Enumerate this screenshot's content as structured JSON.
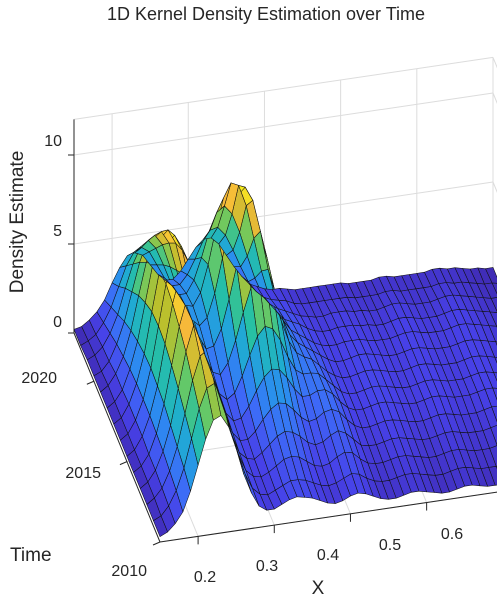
{
  "chart_data": {
    "type": "surface",
    "title": "1D Kernel Density Estimation over Time",
    "xlabel": "X",
    "ylabel": "Time",
    "zlabel": "Density Estimate",
    "x_range": [
      0.15,
      0.7
    ],
    "y_range": [
      2010,
      2023
    ],
    "z_range": [
      0,
      12
    ],
    "x_ticks": [
      0.2,
      0.3,
      0.4,
      0.5,
      0.6
    ],
    "x_tick_labels": [
      "0.2",
      "0.3",
      "0.4",
      "0.5",
      "0.6"
    ],
    "y_ticks": [
      2010,
      2015,
      2020
    ],
    "y_tick_labels": [
      "2010",
      "2015",
      "2020"
    ],
    "z_ticks": [
      0,
      5,
      10
    ],
    "z_tick_labels": [
      "0",
      "5",
      "10"
    ],
    "colormap": "parula",
    "colormap_stops": [
      "#3e26a8",
      "#4741e8",
      "#3e69f7",
      "#2b8def",
      "#1fadd0",
      "#27c0a3",
      "#6bc962",
      "#bcc02c",
      "#f6b83a",
      "#f5dd27",
      "#f9fb0e"
    ],
    "grid": true,
    "view": "3-D surface viewed from low X / high Time corner",
    "x_samples": [
      0.15,
      0.16,
      0.17,
      0.18,
      0.19,
      0.2,
      0.21,
      0.22,
      0.23,
      0.24,
      0.25,
      0.26,
      0.27,
      0.28,
      0.29,
      0.3,
      0.31,
      0.32,
      0.33,
      0.34,
      0.35,
      0.36,
      0.37,
      0.38,
      0.39,
      0.4,
      0.41,
      0.42,
      0.43,
      0.44,
      0.45,
      0.46,
      0.47,
      0.48,
      0.49,
      0.5,
      0.51,
      0.52,
      0.53,
      0.54,
      0.55,
      0.56,
      0.57,
      0.58,
      0.59,
      0.6,
      0.61,
      0.62,
      0.63,
      0.64,
      0.65,
      0.66,
      0.67,
      0.68,
      0.69,
      0.7
    ],
    "series": [
      {
        "name": "2010",
        "values": [
          0.3,
          0.5,
          0.9,
          1.5,
          2.6,
          4.0,
          5.4,
          6.4,
          6.6,
          5.9,
          4.6,
          3.1,
          2.0,
          1.2,
          0.9,
          0.9,
          1.1,
          1.3,
          1.4,
          1.3,
          1.2,
          1.0,
          0.8,
          0.7,
          0.8,
          1.0,
          1.1,
          1.0,
          0.8,
          0.6,
          0.5,
          0.5,
          0.6,
          0.7,
          0.7,
          0.6,
          0.5,
          0.4,
          0.4,
          0.5,
          0.6,
          0.6,
          0.5,
          0.4,
          0.4,
          0.4,
          0.5,
          0.6,
          0.6,
          0.5,
          0.4,
          0.4,
          0.4,
          0.4,
          0.3,
          0.3
        ]
      },
      {
        "name": "2011",
        "values": [
          0.3,
          0.5,
          1.0,
          1.8,
          3.0,
          4.6,
          6.2,
          7.3,
          7.5,
          6.7,
          5.2,
          3.5,
          2.2,
          1.3,
          0.9,
          0.8,
          1.0,
          1.2,
          1.4,
          1.4,
          1.3,
          1.1,
          0.9,
          0.8,
          0.9,
          1.1,
          1.3,
          1.2,
          0.9,
          0.7,
          0.6,
          0.6,
          0.7,
          0.8,
          0.8,
          0.7,
          0.6,
          0.5,
          0.5,
          0.6,
          0.7,
          0.7,
          0.6,
          0.5,
          0.5,
          0.5,
          0.6,
          0.7,
          0.7,
          0.6,
          0.5,
          0.5,
          0.5,
          0.5,
          0.4,
          0.4
        ]
      },
      {
        "name": "2012",
        "values": [
          0.3,
          0.6,
          1.1,
          2.0,
          3.3,
          5.1,
          6.9,
          8.2,
          8.5,
          7.6,
          5.9,
          3.9,
          2.4,
          1.4,
          1.0,
          0.9,
          1.1,
          1.4,
          1.7,
          1.8,
          1.7,
          1.4,
          1.1,
          1.0,
          1.1,
          1.4,
          1.6,
          1.5,
          1.1,
          0.8,
          0.7,
          0.7,
          0.8,
          0.9,
          0.9,
          0.8,
          0.7,
          0.6,
          0.6,
          0.7,
          0.8,
          0.8,
          0.7,
          0.6,
          0.6,
          0.6,
          0.7,
          0.8,
          0.8,
          0.7,
          0.6,
          0.6,
          0.6,
          0.5,
          0.4,
          0.4
        ]
      },
      {
        "name": "2013",
        "values": [
          0.3,
          0.6,
          1.2,
          2.2,
          3.6,
          5.6,
          7.6,
          9.0,
          9.3,
          8.3,
          6.4,
          4.3,
          2.6,
          1.5,
          1.1,
          1.0,
          1.3,
          1.7,
          2.1,
          2.3,
          2.2,
          1.9,
          1.5,
          1.3,
          1.4,
          1.7,
          1.9,
          1.7,
          1.3,
          0.9,
          0.8,
          0.8,
          0.9,
          1.0,
          1.0,
          0.9,
          0.8,
          0.7,
          0.7,
          0.8,
          0.9,
          0.9,
          0.8,
          0.7,
          0.7,
          0.7,
          0.8,
          0.9,
          0.9,
          0.8,
          0.7,
          0.7,
          0.6,
          0.6,
          0.5,
          0.5
        ]
      },
      {
        "name": "2014",
        "values": [
          0.3,
          0.6,
          1.2,
          2.3,
          3.9,
          6.0,
          8.1,
          9.6,
          10.0,
          9.0,
          7.0,
          4.7,
          2.9,
          1.7,
          1.2,
          1.2,
          1.6,
          2.2,
          2.7,
          3.0,
          2.9,
          2.5,
          2.0,
          1.7,
          1.8,
          2.1,
          2.2,
          2.0,
          1.5,
          1.1,
          0.9,
          0.9,
          1.0,
          1.1,
          1.1,
          1.0,
          0.9,
          0.8,
          0.8,
          0.9,
          1.0,
          1.0,
          0.9,
          0.8,
          0.8,
          0.8,
          0.9,
          1.0,
          1.0,
          0.9,
          0.8,
          0.8,
          0.7,
          0.6,
          0.5,
          0.5
        ]
      },
      {
        "name": "2015",
        "values": [
          0.3,
          0.6,
          1.3,
          2.4,
          4.0,
          6.3,
          8.5,
          10.1,
          10.5,
          9.5,
          7.4,
          5.0,
          3.1,
          1.9,
          1.4,
          1.5,
          2.1,
          2.9,
          3.6,
          4.0,
          3.9,
          3.4,
          2.7,
          2.2,
          2.2,
          2.4,
          2.4,
          2.1,
          1.6,
          1.2,
          1.0,
          1.0,
          1.1,
          1.2,
          1.2,
          1.1,
          1.0,
          0.9,
          0.9,
          1.0,
          1.1,
          1.1,
          1.0,
          0.9,
          0.9,
          0.9,
          1.0,
          1.1,
          1.1,
          1.0,
          0.9,
          0.8,
          0.7,
          0.6,
          0.5,
          0.5
        ]
      },
      {
        "name": "2016",
        "values": [
          0.3,
          0.6,
          1.3,
          2.4,
          4.1,
          6.4,
          8.7,
          10.3,
          10.7,
          9.7,
          7.6,
          5.2,
          3.3,
          2.1,
          1.7,
          2.0,
          2.9,
          4.0,
          5.0,
          5.5,
          5.3,
          4.6,
          3.6,
          2.8,
          2.5,
          2.5,
          2.4,
          2.0,
          1.6,
          1.2,
          1.0,
          1.0,
          1.1,
          1.2,
          1.2,
          1.1,
          1.0,
          0.9,
          0.9,
          1.0,
          1.1,
          1.1,
          1.0,
          0.9,
          0.9,
          0.9,
          1.0,
          1.1,
          1.1,
          1.0,
          0.9,
          0.8,
          0.7,
          0.6,
          0.5,
          0.5
        ]
      },
      {
        "name": "2017",
        "values": [
          0.3,
          0.6,
          1.3,
          2.4,
          4.0,
          6.3,
          8.5,
          10.0,
          10.4,
          9.5,
          7.5,
          5.2,
          3.4,
          2.4,
          2.2,
          2.8,
          4.0,
          5.5,
          6.8,
          7.4,
          7.1,
          6.1,
          4.7,
          3.5,
          2.8,
          2.5,
          2.3,
          1.9,
          1.5,
          1.2,
          1.0,
          1.0,
          1.1,
          1.2,
          1.2,
          1.1,
          1.0,
          0.9,
          0.9,
          1.0,
          1.1,
          1.1,
          1.0,
          0.9,
          0.9,
          0.9,
          1.0,
          1.1,
          1.1,
          1.0,
          0.9,
          0.8,
          0.7,
          0.6,
          0.5,
          0.5
        ]
      },
      {
        "name": "2018",
        "values": [
          0.3,
          0.6,
          1.2,
          2.3,
          3.8,
          5.9,
          8.0,
          9.4,
          9.8,
          9.0,
          7.2,
          5.1,
          3.6,
          2.8,
          2.9,
          3.8,
          5.4,
          7.2,
          8.7,
          9.3,
          8.8,
          7.4,
          5.5,
          3.9,
          2.9,
          2.4,
          2.1,
          1.8,
          1.5,
          1.2,
          1.0,
          1.0,
          1.1,
          1.2,
          1.2,
          1.1,
          1.0,
          0.9,
          0.9,
          1.0,
          1.1,
          1.1,
          1.0,
          0.9,
          0.9,
          0.9,
          1.0,
          1.1,
          1.1,
          1.0,
          0.9,
          0.8,
          0.7,
          0.6,
          0.5,
          0.5
        ]
      },
      {
        "name": "2019",
        "values": [
          0.3,
          0.6,
          1.2,
          2.1,
          3.5,
          5.4,
          7.2,
          8.5,
          8.8,
          8.1,
          6.5,
          4.8,
          3.6,
          3.2,
          3.6,
          4.9,
          6.8,
          8.8,
          10.2,
          10.6,
          9.8,
          8.0,
          5.8,
          4.0,
          2.8,
          2.2,
          1.9,
          1.6,
          1.3,
          1.1,
          1.0,
          1.0,
          1.1,
          1.1,
          1.1,
          1.0,
          0.9,
          0.9,
          0.9,
          1.0,
          1.1,
          1.1,
          1.0,
          0.9,
          0.9,
          0.9,
          1.0,
          1.1,
          1.1,
          1.0,
          0.9,
          0.8,
          0.7,
          0.6,
          0.5,
          0.5
        ]
      },
      {
        "name": "2020",
        "values": [
          0.3,
          0.5,
          1.0,
          1.9,
          3.1,
          4.7,
          6.3,
          7.4,
          7.7,
          7.1,
          5.8,
          4.4,
          3.5,
          3.4,
          4.1,
          5.6,
          7.5,
          9.2,
          10.0,
          9.8,
          8.6,
          6.7,
          4.8,
          3.3,
          2.4,
          1.9,
          1.7,
          1.5,
          1.2,
          1.0,
          0.9,
          0.9,
          1.0,
          1.0,
          1.0,
          0.9,
          0.9,
          0.8,
          0.8,
          0.9,
          1.0,
          1.0,
          0.9,
          0.8,
          0.8,
          0.8,
          0.9,
          1.0,
          1.0,
          0.9,
          0.8,
          0.7,
          0.6,
          0.5,
          0.4,
          0.4
        ]
      },
      {
        "name": "2021",
        "values": [
          0.3,
          0.5,
          0.9,
          1.6,
          2.6,
          4.0,
          5.3,
          6.2,
          6.5,
          6.0,
          5.0,
          3.9,
          3.2,
          3.2,
          3.9,
          5.1,
          6.5,
          7.5,
          7.8,
          7.3,
          6.2,
          4.8,
          3.5,
          2.5,
          1.9,
          1.6,
          1.4,
          1.2,
          1.0,
          0.9,
          0.8,
          0.8,
          0.9,
          0.9,
          0.9,
          0.8,
          0.8,
          0.7,
          0.7,
          0.8,
          0.9,
          0.9,
          0.8,
          0.7,
          0.7,
          0.7,
          0.8,
          0.9,
          0.9,
          0.8,
          0.7,
          0.6,
          0.5,
          0.4,
          0.4,
          0.3
        ]
      },
      {
        "name": "2022",
        "values": [
          0.2,
          0.4,
          0.7,
          1.3,
          2.1,
          3.2,
          4.3,
          5.0,
          5.2,
          4.9,
          4.1,
          3.3,
          2.8,
          2.8,
          3.3,
          4.1,
          5.0,
          5.6,
          5.7,
          5.2,
          4.3,
          3.3,
          2.4,
          1.8,
          1.4,
          1.2,
          1.1,
          1.0,
          0.8,
          0.7,
          0.7,
          0.7,
          0.7,
          0.7,
          0.7,
          0.7,
          0.6,
          0.6,
          0.6,
          0.6,
          0.7,
          0.7,
          0.6,
          0.6,
          0.6,
          0.6,
          0.6,
          0.7,
          0.7,
          0.6,
          0.6,
          0.5,
          0.4,
          0.3,
          0.3,
          0.2
        ]
      },
      {
        "name": "2023",
        "values": [
          0.2,
          0.3,
          0.6,
          1.0,
          1.6,
          2.5,
          3.3,
          3.9,
          4.0,
          3.8,
          3.2,
          2.6,
          2.2,
          2.2,
          2.6,
          3.2,
          3.8,
          4.2,
          4.2,
          3.8,
          3.1,
          2.4,
          1.8,
          1.3,
          1.1,
          0.9,
          0.8,
          0.8,
          0.7,
          0.6,
          0.6,
          0.6,
          0.6,
          0.6,
          0.6,
          0.6,
          0.5,
          0.5,
          0.5,
          0.5,
          0.6,
          0.6,
          0.5,
          0.5,
          0.5,
          0.5,
          0.5,
          0.6,
          0.6,
          0.5,
          0.5,
          0.4,
          0.3,
          0.3,
          0.2,
          0.2
        ]
      }
    ]
  }
}
